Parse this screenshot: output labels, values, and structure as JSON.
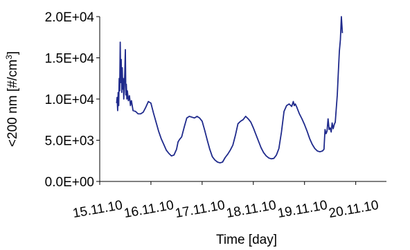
{
  "chart_data": {
    "type": "line",
    "xlabel": "Time [day]",
    "ylabel": "<200 nm [#/cm",
    "ylabel_sup": "3",
    "ylabel_suffix": "]",
    "xlim": [
      15.0,
      20.6
    ],
    "ylim": [
      0,
      20000
    ],
    "grid": false,
    "legend": "none",
    "x_ticks": [
      {
        "value": 15.0,
        "label": "15.11.10"
      },
      {
        "value": 16.0,
        "label": "16.11.10"
      },
      {
        "value": 17.0,
        "label": "17.11.10"
      },
      {
        "value": 18.0,
        "label": "18.11.10"
      },
      {
        "value": 19.0,
        "label": "19.11.10"
      },
      {
        "value": 20.0,
        "label": "20.11.10"
      }
    ],
    "y_ticks": [
      {
        "value": 0,
        "label": "0.0E+00"
      },
      {
        "value": 5000,
        "label": "5.0E+03"
      },
      {
        "value": 10000,
        "label": "1.0E+04"
      },
      {
        "value": 15000,
        "label": "1.5E+04"
      },
      {
        "value": 20000,
        "label": "2.0E+04"
      }
    ],
    "series": [
      {
        "color": "#1f2a8c",
        "points": [
          [
            15.33,
            9500
          ],
          [
            15.34,
            10200
          ],
          [
            15.35,
            8600
          ],
          [
            15.36,
            10800
          ],
          [
            15.37,
            9200
          ],
          [
            15.38,
            12500
          ],
          [
            15.39,
            11000
          ],
          [
            15.4,
            16900
          ],
          [
            15.41,
            12000
          ],
          [
            15.42,
            14800
          ],
          [
            15.43,
            10800
          ],
          [
            15.44,
            13800
          ],
          [
            15.45,
            11200
          ],
          [
            15.46,
            12500
          ],
          [
            15.47,
            10000
          ],
          [
            15.48,
            11500
          ],
          [
            15.49,
            13200
          ],
          [
            15.5,
            16000
          ],
          [
            15.51,
            10500
          ],
          [
            15.52,
            11800
          ],
          [
            15.53,
            10000
          ],
          [
            15.54,
            11000
          ],
          [
            15.56,
            9800
          ],
          [
            15.58,
            10400
          ],
          [
            15.6,
            9200
          ],
          [
            15.62,
            9800
          ],
          [
            15.65,
            8600
          ],
          [
            15.7,
            8500
          ],
          [
            15.75,
            8200
          ],
          [
            15.8,
            8200
          ],
          [
            15.85,
            8400
          ],
          [
            15.9,
            9000
          ],
          [
            15.95,
            9700
          ],
          [
            16.0,
            9500
          ],
          [
            16.05,
            8300
          ],
          [
            16.1,
            7200
          ],
          [
            16.15,
            6100
          ],
          [
            16.2,
            5200
          ],
          [
            16.25,
            4500
          ],
          [
            16.3,
            3800
          ],
          [
            16.35,
            3400
          ],
          [
            16.4,
            3100
          ],
          [
            16.45,
            3200
          ],
          [
            16.5,
            3900
          ],
          [
            16.53,
            4800
          ],
          [
            16.56,
            5100
          ],
          [
            16.6,
            5400
          ],
          [
            16.65,
            6600
          ],
          [
            16.7,
            7700
          ],
          [
            16.75,
            7900
          ],
          [
            16.8,
            7800
          ],
          [
            16.85,
            7700
          ],
          [
            16.9,
            7900
          ],
          [
            16.95,
            7700
          ],
          [
            17.0,
            7300
          ],
          [
            17.05,
            6200
          ],
          [
            17.1,
            5000
          ],
          [
            17.15,
            3900
          ],
          [
            17.2,
            3000
          ],
          [
            17.25,
            2600
          ],
          [
            17.3,
            2350
          ],
          [
            17.35,
            2250
          ],
          [
            17.4,
            2350
          ],
          [
            17.45,
            2900
          ],
          [
            17.5,
            3300
          ],
          [
            17.55,
            3800
          ],
          [
            17.6,
            4400
          ],
          [
            17.65,
            5600
          ],
          [
            17.7,
            7000
          ],
          [
            17.75,
            7300
          ],
          [
            17.8,
            7500
          ],
          [
            17.85,
            7900
          ],
          [
            17.9,
            7600
          ],
          [
            17.95,
            7200
          ],
          [
            18.0,
            6500
          ],
          [
            18.05,
            5700
          ],
          [
            18.1,
            4900
          ],
          [
            18.15,
            4100
          ],
          [
            18.2,
            3500
          ],
          [
            18.25,
            3100
          ],
          [
            18.3,
            2850
          ],
          [
            18.35,
            2750
          ],
          [
            18.4,
            2800
          ],
          [
            18.45,
            3200
          ],
          [
            18.5,
            4000
          ],
          [
            18.55,
            6000
          ],
          [
            18.6,
            8500
          ],
          [
            18.65,
            9200
          ],
          [
            18.7,
            9400
          ],
          [
            18.75,
            9100
          ],
          [
            18.78,
            9700
          ],
          [
            18.8,
            9200
          ],
          [
            18.82,
            9400
          ],
          [
            18.85,
            9000
          ],
          [
            18.9,
            8200
          ],
          [
            18.95,
            7600
          ],
          [
            19.0,
            6900
          ],
          [
            19.05,
            6100
          ],
          [
            19.1,
            5200
          ],
          [
            19.15,
            4500
          ],
          [
            19.2,
            4000
          ],
          [
            19.25,
            3700
          ],
          [
            19.3,
            3600
          ],
          [
            19.35,
            3700
          ],
          [
            19.38,
            3900
          ],
          [
            19.4,
            6300
          ],
          [
            19.42,
            5800
          ],
          [
            19.44,
            6100
          ],
          [
            19.46,
            7600
          ],
          [
            19.48,
            6300
          ],
          [
            19.5,
            6500
          ],
          [
            19.52,
            6000
          ],
          [
            19.54,
            7100
          ],
          [
            19.56,
            6400
          ],
          [
            19.58,
            6900
          ],
          [
            19.6,
            7200
          ],
          [
            19.62,
            8800
          ],
          [
            19.64,
            10500
          ],
          [
            19.66,
            13200
          ],
          [
            19.68,
            15800
          ],
          [
            19.7,
            17200
          ],
          [
            19.72,
            20000
          ],
          [
            19.74,
            18000
          ]
        ]
      }
    ]
  }
}
